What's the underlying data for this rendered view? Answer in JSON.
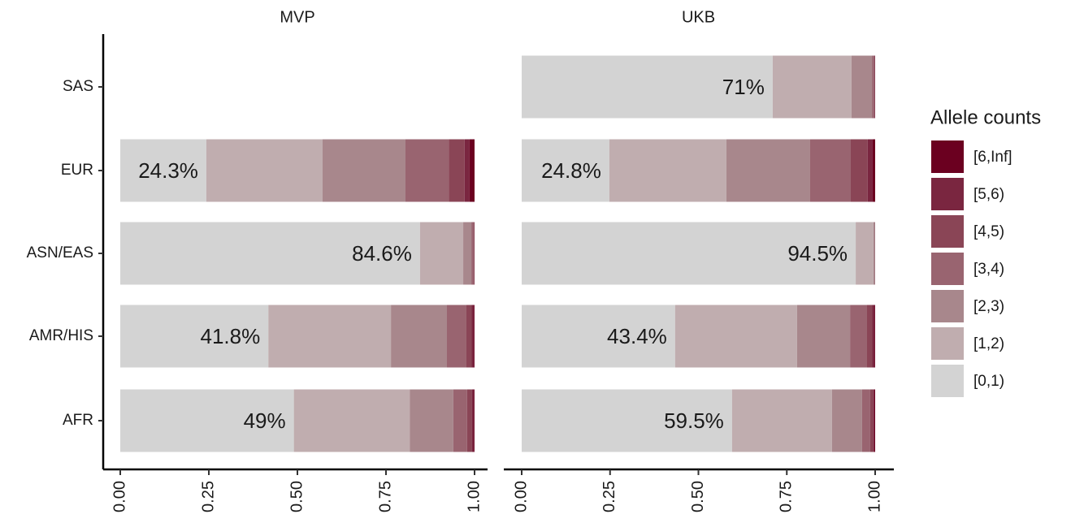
{
  "chart_data": {
    "type": "bar",
    "orientation": "horizontal",
    "stacked": true,
    "categories": [
      "SAS",
      "EUR",
      "ASN/EAS",
      "AMR/HIS",
      "AFR"
    ],
    "xlim": [
      0,
      1
    ],
    "xticks": [
      {
        "value": 0,
        "label": "0.00"
      },
      {
        "value": 0.25,
        "label": "0.25"
      },
      {
        "value": 0.5,
        "label": "0.50"
      },
      {
        "value": 0.75,
        "label": "0.75"
      },
      {
        "value": 1,
        "label": "1.00"
      }
    ],
    "legend_title": "Allele counts",
    "legend_position": "right",
    "series": [
      {
        "name": "[0,1)",
        "color": "#d3d3d3"
      },
      {
        "name": "[1,2)",
        "color": "#c0adaf"
      },
      {
        "name": "[2,3)",
        "color": "#a8878c"
      },
      {
        "name": "[3,4)",
        "color": "#996470"
      },
      {
        "name": "[4,5)",
        "color": "#8a4556"
      },
      {
        "name": "[5,6)",
        "color": "#7a2640"
      },
      {
        "name": "[6,Inf]",
        "color": "#6b0020"
      }
    ],
    "panels": [
      {
        "title": "MVP",
        "series": [
          {
            "values": [
              null,
              0.243,
              0.846,
              0.418,
              0.49
            ],
            "value_labels": [
              null,
              "24.3%",
              "84.6%",
              "41.8%",
              "49%"
            ]
          },
          {
            "values": [
              null,
              0.328,
              0.122,
              0.346,
              0.327
            ]
          },
          {
            "values": [
              null,
              0.234,
              0.023,
              0.158,
              0.123
            ]
          },
          {
            "values": [
              null,
              0.122,
              0.006,
              0.055,
              0.039
            ]
          },
          {
            "values": [
              null,
              0.045,
              0.003,
              0.015,
              0.014
            ]
          },
          {
            "values": [
              null,
              0.014,
              0,
              0.006,
              0.005
            ]
          },
          {
            "values": [
              null,
              0.014,
              0,
              0.002,
              0.002
            ]
          }
        ]
      },
      {
        "title": "UKB",
        "series": [
          {
            "values": [
              0.71,
              0.248,
              0.945,
              0.434,
              0.595
            ],
            "value_labels": [
              "71%",
              "24.8%",
              "94.5%",
              "43.4%",
              "59.5%"
            ]
          },
          {
            "values": [
              0.223,
              0.331,
              0.05,
              0.345,
              0.283
            ]
          },
          {
            "values": [
              0.058,
              0.237,
              0.004,
              0.15,
              0.085
            ]
          },
          {
            "values": [
              0.006,
              0.115,
              0.001,
              0.048,
              0.023
            ]
          },
          {
            "values": [
              0.002,
              0.048,
              0,
              0.015,
              0.008
            ]
          },
          {
            "values": [
              0.001,
              0.014,
              0,
              0.006,
              0.003
            ]
          },
          {
            "values": [
              0,
              0.007,
              0,
              0.002,
              0.003
            ]
          }
        ]
      }
    ]
  }
}
